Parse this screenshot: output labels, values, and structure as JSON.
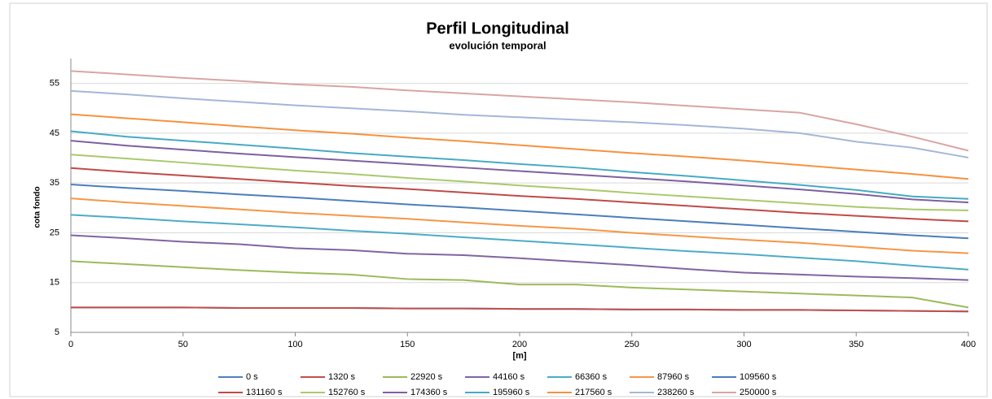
{
  "chart_data": {
    "type": "line",
    "title": "Perfil Longitudinal",
    "subtitle": "evolución temporal",
    "x_label": "[m]",
    "y_label": "cota fondo",
    "x": [
      0,
      25,
      50,
      75,
      100,
      125,
      150,
      175,
      200,
      225,
      250,
      275,
      300,
      325,
      350,
      375,
      400
    ],
    "xlim": [
      0,
      400
    ],
    "xticks": [
      0,
      50,
      100,
      150,
      200,
      250,
      300,
      350,
      400
    ],
    "ylim": [
      5,
      60
    ],
    "yticks": [
      5,
      15,
      25,
      35,
      45,
      55
    ],
    "grid": true,
    "legend": "bottom",
    "series": [
      {
        "name": "0 s",
        "color": "#4f81bd",
        "values": [
          10,
          10,
          10,
          9.9,
          9.9,
          9.9,
          9.8,
          9.8,
          9.7,
          9.7,
          9.6,
          9.6,
          9.5,
          9.5,
          9.4,
          9.3,
          9.2
        ]
      },
      {
        "name": "1320 s",
        "color": "#c0504d",
        "values": [
          10,
          10,
          10,
          9.9,
          9.9,
          9.9,
          9.8,
          9.8,
          9.7,
          9.7,
          9.6,
          9.6,
          9.5,
          9.5,
          9.4,
          9.3,
          9.2
        ]
      },
      {
        "name": "22920 s",
        "color": "#9bbb59",
        "values": [
          19.3,
          18.7,
          18.1,
          17.5,
          17.0,
          16.6,
          15.7,
          15.5,
          14.6,
          14.6,
          14.0,
          13.6,
          13.2,
          12.8,
          12.4,
          12.0,
          10.0
        ]
      },
      {
        "name": "44160 s",
        "color": "#8064a2",
        "values": [
          24.5,
          23.9,
          23.2,
          22.7,
          21.9,
          21.5,
          20.8,
          20.5,
          19.9,
          19.2,
          18.5,
          17.7,
          17.0,
          16.6,
          16.2,
          15.9,
          15.5
        ]
      },
      {
        "name": "66360 s",
        "color": "#4bacc6",
        "values": [
          28.6,
          28.0,
          27.3,
          26.7,
          26.1,
          25.4,
          24.8,
          24.1,
          23.4,
          22.7,
          22.0,
          21.3,
          20.7,
          20.0,
          19.3,
          18.4,
          17.6
        ]
      },
      {
        "name": "87960 s",
        "color": "#f79646",
        "values": [
          31.9,
          31.1,
          30.4,
          29.7,
          29.0,
          28.4,
          27.8,
          27.1,
          26.4,
          25.8,
          25.0,
          24.3,
          23.6,
          23.0,
          22.2,
          21.4,
          20.9
        ]
      },
      {
        "name": "109560 s",
        "color": "#4a7ebb",
        "values": [
          34.7,
          34.0,
          33.4,
          32.7,
          32.1,
          31.4,
          30.7,
          30.1,
          29.4,
          28.7,
          28.0,
          27.3,
          26.6,
          25.9,
          25.2,
          24.5,
          23.9
        ]
      },
      {
        "name": "131160 s",
        "color": "#be4b48",
        "values": [
          38.0,
          37.2,
          36.5,
          35.8,
          35.1,
          34.4,
          33.8,
          33.1,
          32.4,
          31.8,
          31.1,
          30.4,
          29.7,
          29.0,
          28.4,
          27.8,
          27.3
        ]
      },
      {
        "name": "152760 s",
        "color": "#a9c96b",
        "values": [
          40.7,
          39.9,
          39.1,
          38.3,
          37.5,
          36.8,
          36.0,
          35.3,
          34.5,
          33.8,
          33.0,
          32.3,
          31.6,
          30.9,
          30.2,
          29.7,
          29.5
        ]
      },
      {
        "name": "174360 s",
        "color": "#7d60a0",
        "values": [
          43.5,
          42.5,
          41.7,
          40.9,
          40.2,
          39.5,
          38.8,
          38.1,
          37.4,
          36.7,
          36.0,
          35.3,
          34.5,
          33.7,
          32.8,
          31.7,
          31.1
        ]
      },
      {
        "name": "195960 s",
        "color": "#46aac5",
        "values": [
          45.4,
          44.3,
          43.5,
          42.7,
          41.9,
          41.0,
          40.3,
          39.6,
          38.8,
          38.1,
          37.2,
          36.4,
          35.5,
          34.6,
          33.6,
          32.3,
          31.8
        ]
      },
      {
        "name": "217560 s",
        "color": "#f69240",
        "values": [
          48.8,
          48.0,
          47.2,
          46.4,
          45.6,
          44.9,
          44.1,
          43.4,
          42.6,
          41.8,
          41.0,
          40.3,
          39.5,
          38.6,
          37.7,
          36.8,
          35.8
        ]
      },
      {
        "name": "238260 s",
        "color": "#a5b6d8",
        "values": [
          53.5,
          52.8,
          52.0,
          51.3,
          50.6,
          50.0,
          49.4,
          48.7,
          48.2,
          47.7,
          47.2,
          46.6,
          45.9,
          45.0,
          43.3,
          42.1,
          40.1
        ]
      },
      {
        "name": "250000 s",
        "color": "#d9a5a4",
        "values": [
          57.5,
          56.8,
          56.1,
          55.5,
          54.8,
          54.3,
          53.6,
          53.0,
          52.4,
          51.8,
          51.2,
          50.5,
          49.8,
          49.1,
          46.8,
          44.3,
          41.5
        ]
      }
    ]
  }
}
